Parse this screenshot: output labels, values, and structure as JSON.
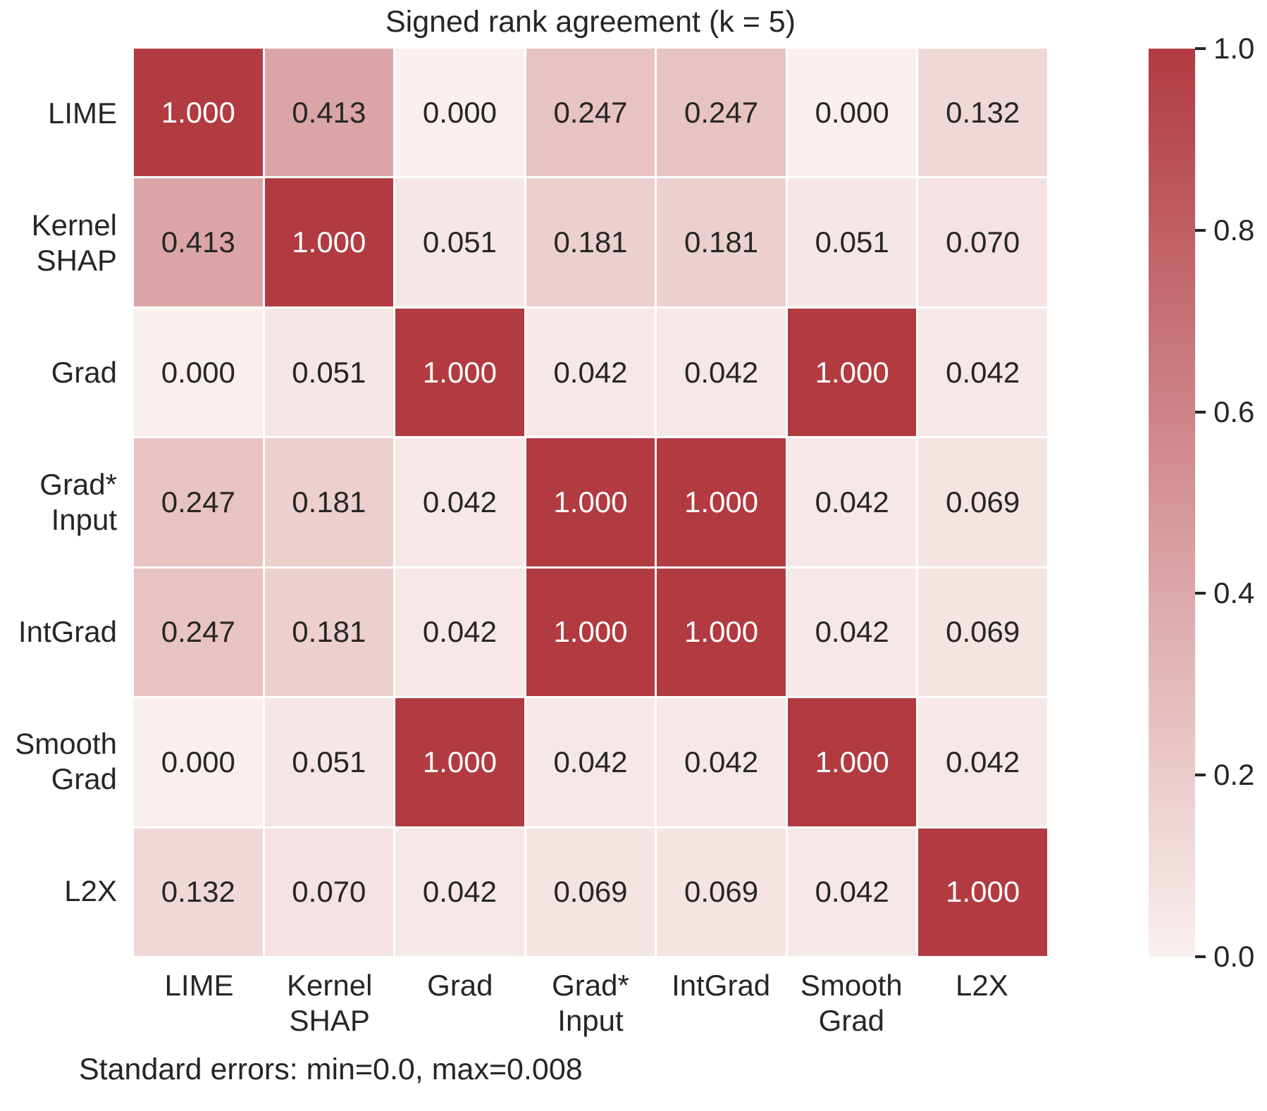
{
  "title": "Signed rank agreement (k = 5)",
  "footnote": "Standard errors: min=0.0, max=0.008",
  "chart_data": {
    "type": "heatmap",
    "title": "Signed rank agreement (k = 5)",
    "x_labels": [
      "LIME",
      "Kernel\nSHAP",
      "Grad",
      "Grad*\nInput",
      "IntGrad",
      "Smooth\nGrad",
      "L2X"
    ],
    "y_labels": [
      "LIME",
      "Kernel\nSHAP",
      "Grad",
      "Grad*\nInput",
      "IntGrad",
      "Smooth\nGrad",
      "L2X"
    ],
    "values": [
      [
        1.0,
        0.413,
        0.0,
        0.247,
        0.247,
        0.0,
        0.132
      ],
      [
        0.413,
        1.0,
        0.051,
        0.181,
        0.181,
        0.051,
        0.07
      ],
      [
        0.0,
        0.051,
        1.0,
        0.042,
        0.042,
        1.0,
        0.042
      ],
      [
        0.247,
        0.181,
        0.042,
        1.0,
        1.0,
        0.042,
        0.069
      ],
      [
        0.247,
        0.181,
        0.042,
        1.0,
        1.0,
        0.042,
        0.069
      ],
      [
        0.0,
        0.051,
        1.0,
        0.042,
        0.042,
        1.0,
        0.042
      ],
      [
        0.132,
        0.07,
        0.042,
        0.069,
        0.069,
        0.042,
        1.0
      ]
    ],
    "value_decimals": 3,
    "colorbar": {
      "min": 0.0,
      "max": 1.0,
      "tick_values": [
        1.0,
        0.8,
        0.6,
        0.4,
        0.2,
        0.0
      ],
      "tick_labels": [
        "1.0",
        "0.8",
        "0.6",
        "0.4",
        "0.2",
        "0.0"
      ],
      "position": "right"
    },
    "colors": {
      "low": "#f9f0ee",
      "high": "#b13b41",
      "annotation_dark": "#262626",
      "annotation_light": "#ffffff"
    },
    "annotation": "Standard errors: min=0.0, max=0.008",
    "grid_gap_color": "#ffffff"
  }
}
